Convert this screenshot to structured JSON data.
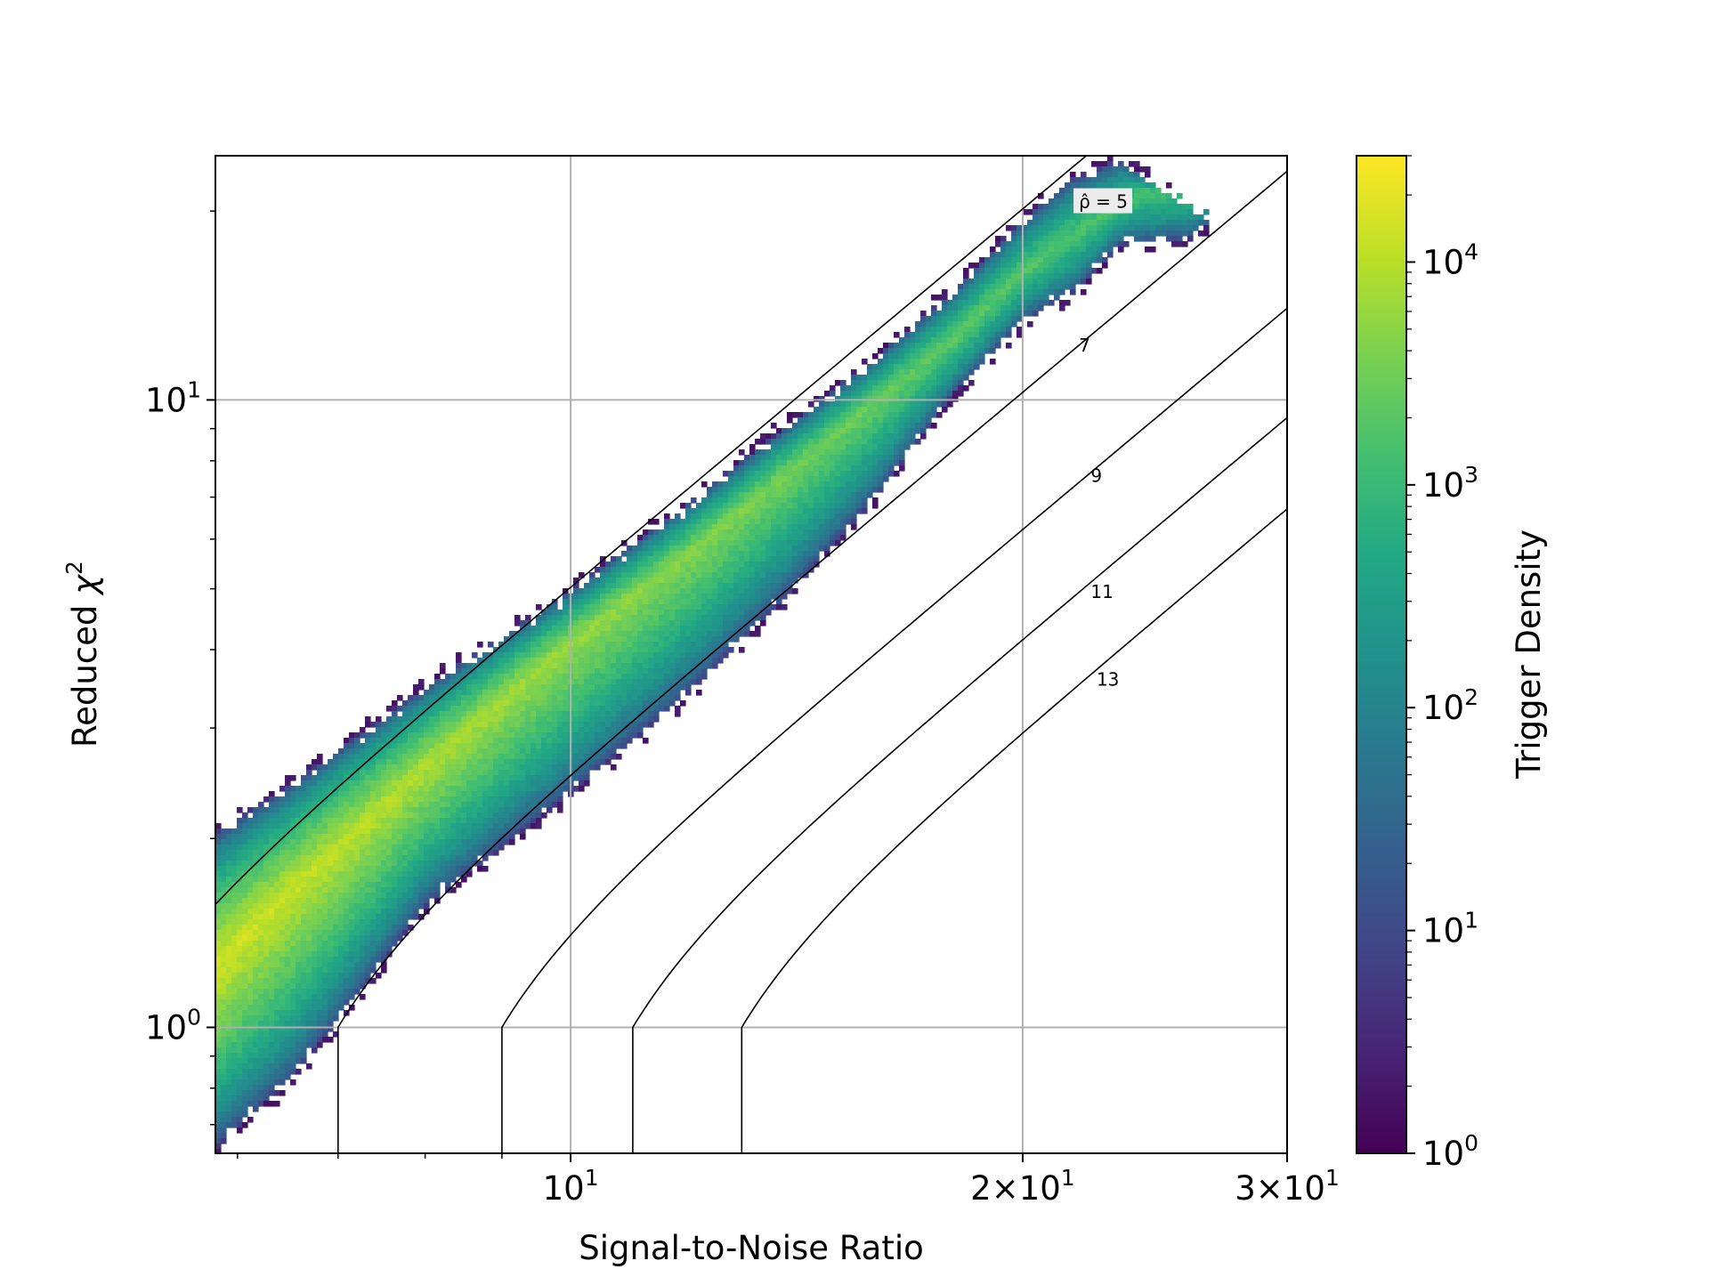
{
  "chart_data": {
    "type": "heatmap",
    "subtype": "hexbin",
    "xlabel": "Signal-to-Noise Ratio",
    "ylabel_prefix": "Reduced ",
    "ylabel_symbol": "χ",
    "ylabel_sup": "2",
    "xscale": "log",
    "yscale": "log",
    "xlim": [
      5.8,
      30
    ],
    "ylim": [
      0.63,
      24.5
    ],
    "grid": true,
    "x_ticks": [
      {
        "value": 10,
        "base": "10",
        "exp": "1"
      },
      {
        "value": 20,
        "base": "2×10",
        "exp": "1"
      },
      {
        "value": 30,
        "base": "3×10",
        "exp": "1"
      }
    ],
    "y_ticks": [
      {
        "value": 1,
        "base": "10",
        "exp": "0"
      },
      {
        "value": 10,
        "base": "10",
        "exp": "1"
      }
    ],
    "colorbar": {
      "label": "Trigger Density",
      "scale": "log",
      "range": [
        1,
        30000
      ],
      "colormap": "viridis",
      "ticks": [
        {
          "value": 1,
          "base": "10",
          "exp": "0"
        },
        {
          "value": 10,
          "base": "10",
          "exp": "1"
        },
        {
          "value": 100,
          "base": "10",
          "exp": "2"
        },
        {
          "value": 1000,
          "base": "10",
          "exp": "3"
        },
        {
          "value": 10000,
          "base": "10",
          "exp": "4"
        }
      ]
    },
    "contours": [
      {
        "level": 5,
        "label": "ρ̂ = 5",
        "label_at": [
          21.8,
          20.5
        ]
      },
      {
        "level": 7,
        "label": "7",
        "label_at": [
          21.8,
          12.1
        ]
      },
      {
        "level": 9,
        "label": "9",
        "label_at": [
          22.2,
          7.5
        ]
      },
      {
        "level": 11,
        "label": "11",
        "label_at": [
          22.2,
          4.9
        ]
      },
      {
        "level": 13,
        "label": "13",
        "label_at": [
          22.4,
          3.55
        ]
      }
    ],
    "density_band": {
      "upper_edge": [
        [
          5.8,
          2.05
        ],
        [
          6.5,
          2.45
        ],
        [
          8,
          3.5
        ],
        [
          10,
          5.0
        ],
        [
          12,
          6.9
        ],
        [
          14,
          9.2
        ],
        [
          16,
          11.8
        ],
        [
          18,
          15.0
        ],
        [
          20,
          19.5
        ],
        [
          21.5,
          22.5
        ],
        [
          23.2,
          24.2
        ],
        [
          24.8,
          22.0
        ],
        [
          26.8,
          19.2
        ]
      ],
      "ridge": [
        [
          5.8,
          1.25
        ],
        [
          6.5,
          1.65
        ],
        [
          8,
          2.6
        ],
        [
          10,
          4.1
        ],
        [
          12,
          5.7
        ],
        [
          14,
          7.7
        ],
        [
          16,
          10.0
        ],
        [
          18,
          12.5
        ],
        [
          20,
          16.0
        ],
        [
          22,
          18.8
        ],
        [
          24,
          21.5
        ]
      ],
      "lower_edge": [
        [
          5.8,
          0.64
        ],
        [
          6.5,
          0.82
        ],
        [
          7,
          1.02
        ],
        [
          8,
          1.55
        ],
        [
          10,
          2.35
        ],
        [
          12,
          3.4
        ],
        [
          14,
          4.9
        ],
        [
          16,
          7.0
        ],
        [
          18,
          10.2
        ],
        [
          20,
          13.3
        ],
        [
          21.8,
          15.0
        ],
        [
          23.2,
          17.6
        ],
        [
          25.8,
          18.0
        ],
        [
          26.8,
          19.2
        ]
      ],
      "peak_density": 30000,
      "peak_at": [
        5.85,
        1.1
      ]
    }
  }
}
